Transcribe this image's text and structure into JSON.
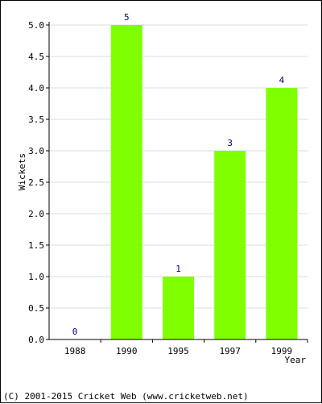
{
  "chart_data": {
    "type": "bar",
    "categories": [
      "1988",
      "1990",
      "1995",
      "1997",
      "1999"
    ],
    "values": [
      0,
      5,
      1,
      3,
      4
    ],
    "value_labels": [
      "0",
      "5",
      "1",
      "3",
      "4"
    ],
    "xlabel": "Year",
    "ylabel": "Wickets",
    "ylim": [
      0,
      5
    ],
    "yticks": [
      "0.0",
      "0.5",
      "1.0",
      "1.5",
      "2.0",
      "2.5",
      "3.0",
      "3.5",
      "4.0",
      "4.5",
      "5.0"
    ],
    "grid": true,
    "legend": "none"
  },
  "colors": {
    "bar": "#80ff00",
    "bar_label": "#000080",
    "grid": "#dcdcdc",
    "axis": "#000000",
    "text": "#000000"
  },
  "footer": {
    "copyright": "(C) 2001-2015 Cricket Web (www.cricketweb.net)"
  }
}
